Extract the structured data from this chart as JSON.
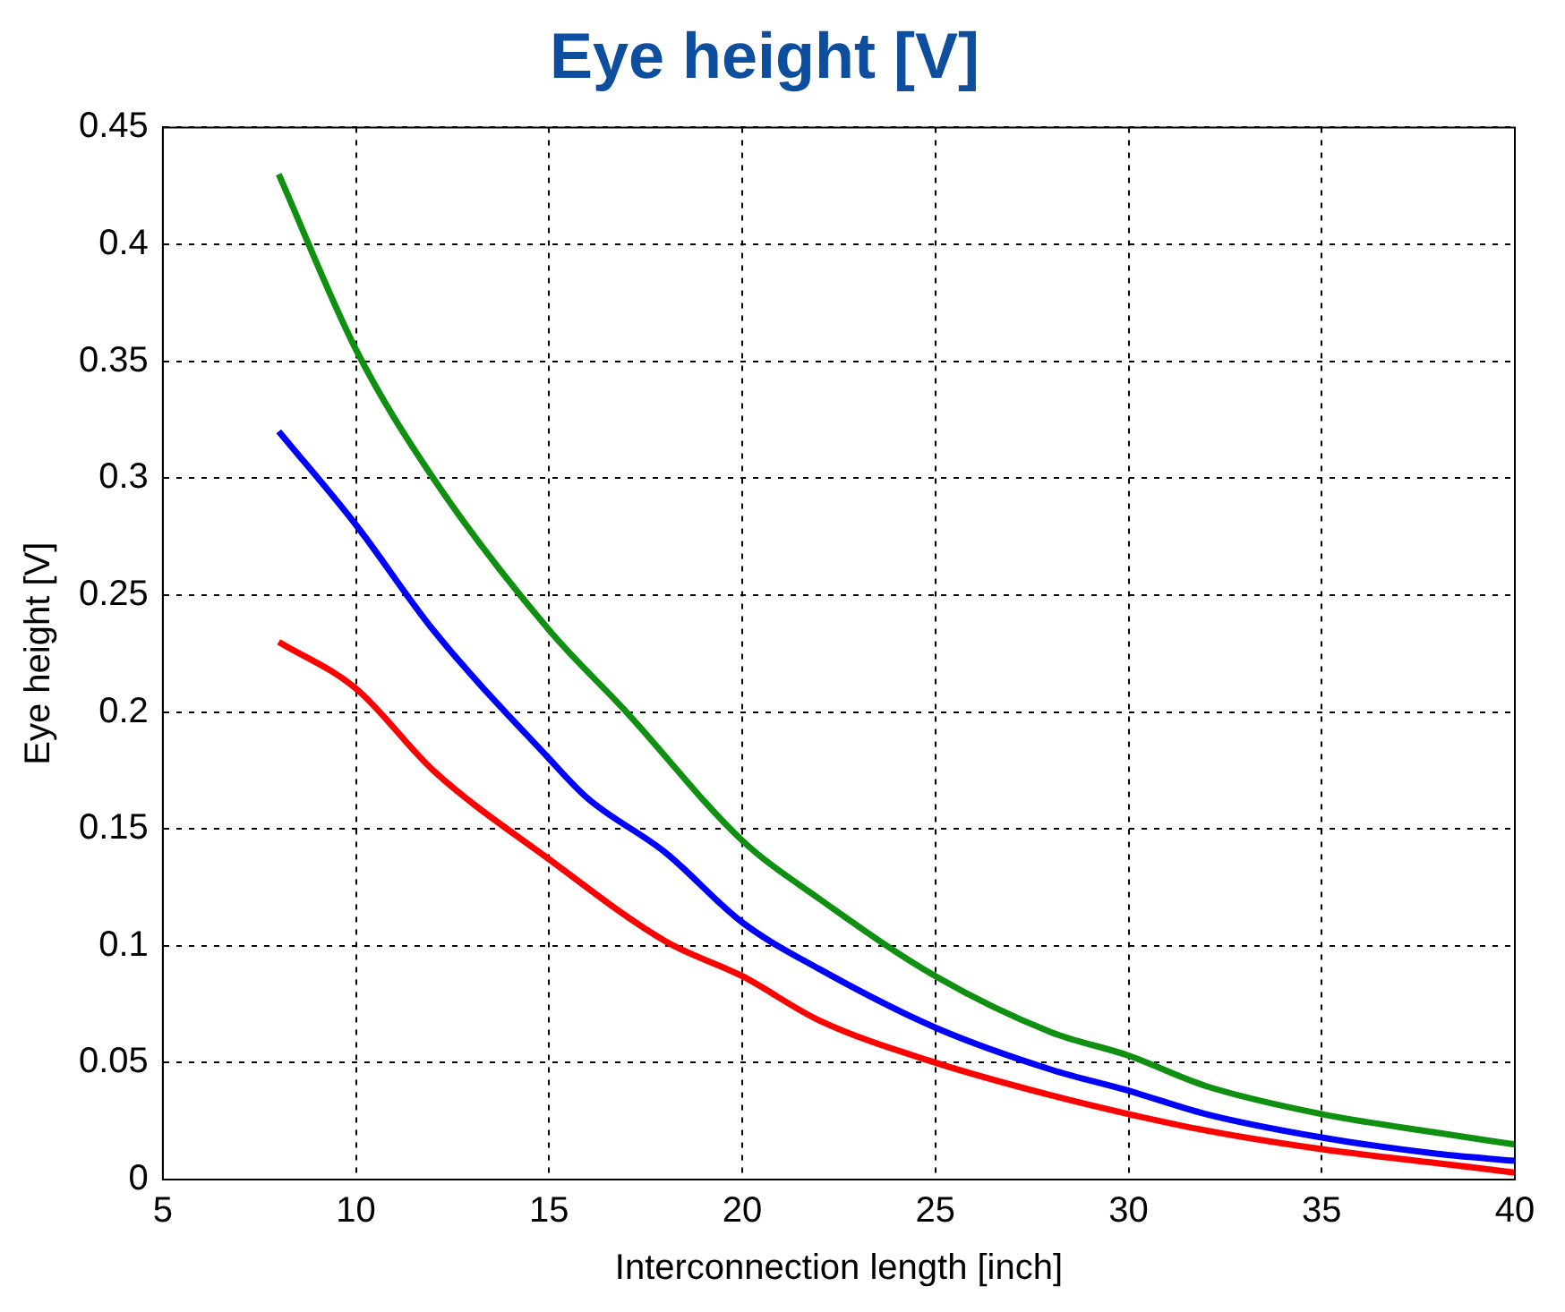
{
  "chart_data": {
    "type": "line",
    "title": "Eye height [V]",
    "xlabel": "Interconnection length [inch]",
    "ylabel": "Eye height [V]",
    "xlim": [
      5,
      40
    ],
    "xticks": [
      5,
      10,
      15,
      20,
      25,
      30,
      35,
      40
    ],
    "ylim": [
      0,
      0.45
    ],
    "yticks": [
      0,
      0.05,
      0.1,
      0.15,
      0.2,
      0.25,
      0.3,
      0.35,
      0.4,
      0.45
    ],
    "grid": true,
    "line_style": "solid",
    "marker": "none",
    "series": [
      {
        "color": "#109010",
        "x": [
          8,
          10,
          12,
          15,
          17,
          20,
          22,
          25,
          28,
          30,
          32,
          35,
          38,
          40
        ],
        "values": [
          0.43,
          0.355,
          0.3,
          0.235,
          0.2,
          0.145,
          0.12,
          0.087,
          0.063,
          0.053,
          0.04,
          0.028,
          0.02,
          0.015
        ]
      },
      {
        "color": "#0000ff",
        "x": [
          8,
          10,
          12,
          15,
          16,
          18,
          20,
          22,
          25,
          28,
          30,
          32,
          35,
          38,
          40
        ],
        "values": [
          0.32,
          0.28,
          0.235,
          0.18,
          0.163,
          0.14,
          0.11,
          0.09,
          0.065,
          0.047,
          0.038,
          0.028,
          0.018,
          0.011,
          0.008
        ]
      },
      {
        "color": "#ff0000",
        "x": [
          8,
          10,
          12,
          15,
          18,
          20,
          22,
          25,
          28,
          30,
          32,
          35,
          38,
          40
        ],
        "values": [
          0.23,
          0.21,
          0.175,
          0.137,
          0.102,
          0.087,
          0.068,
          0.05,
          0.036,
          0.028,
          0.021,
          0.013,
          0.007,
          0.003
        ]
      }
    ]
  }
}
